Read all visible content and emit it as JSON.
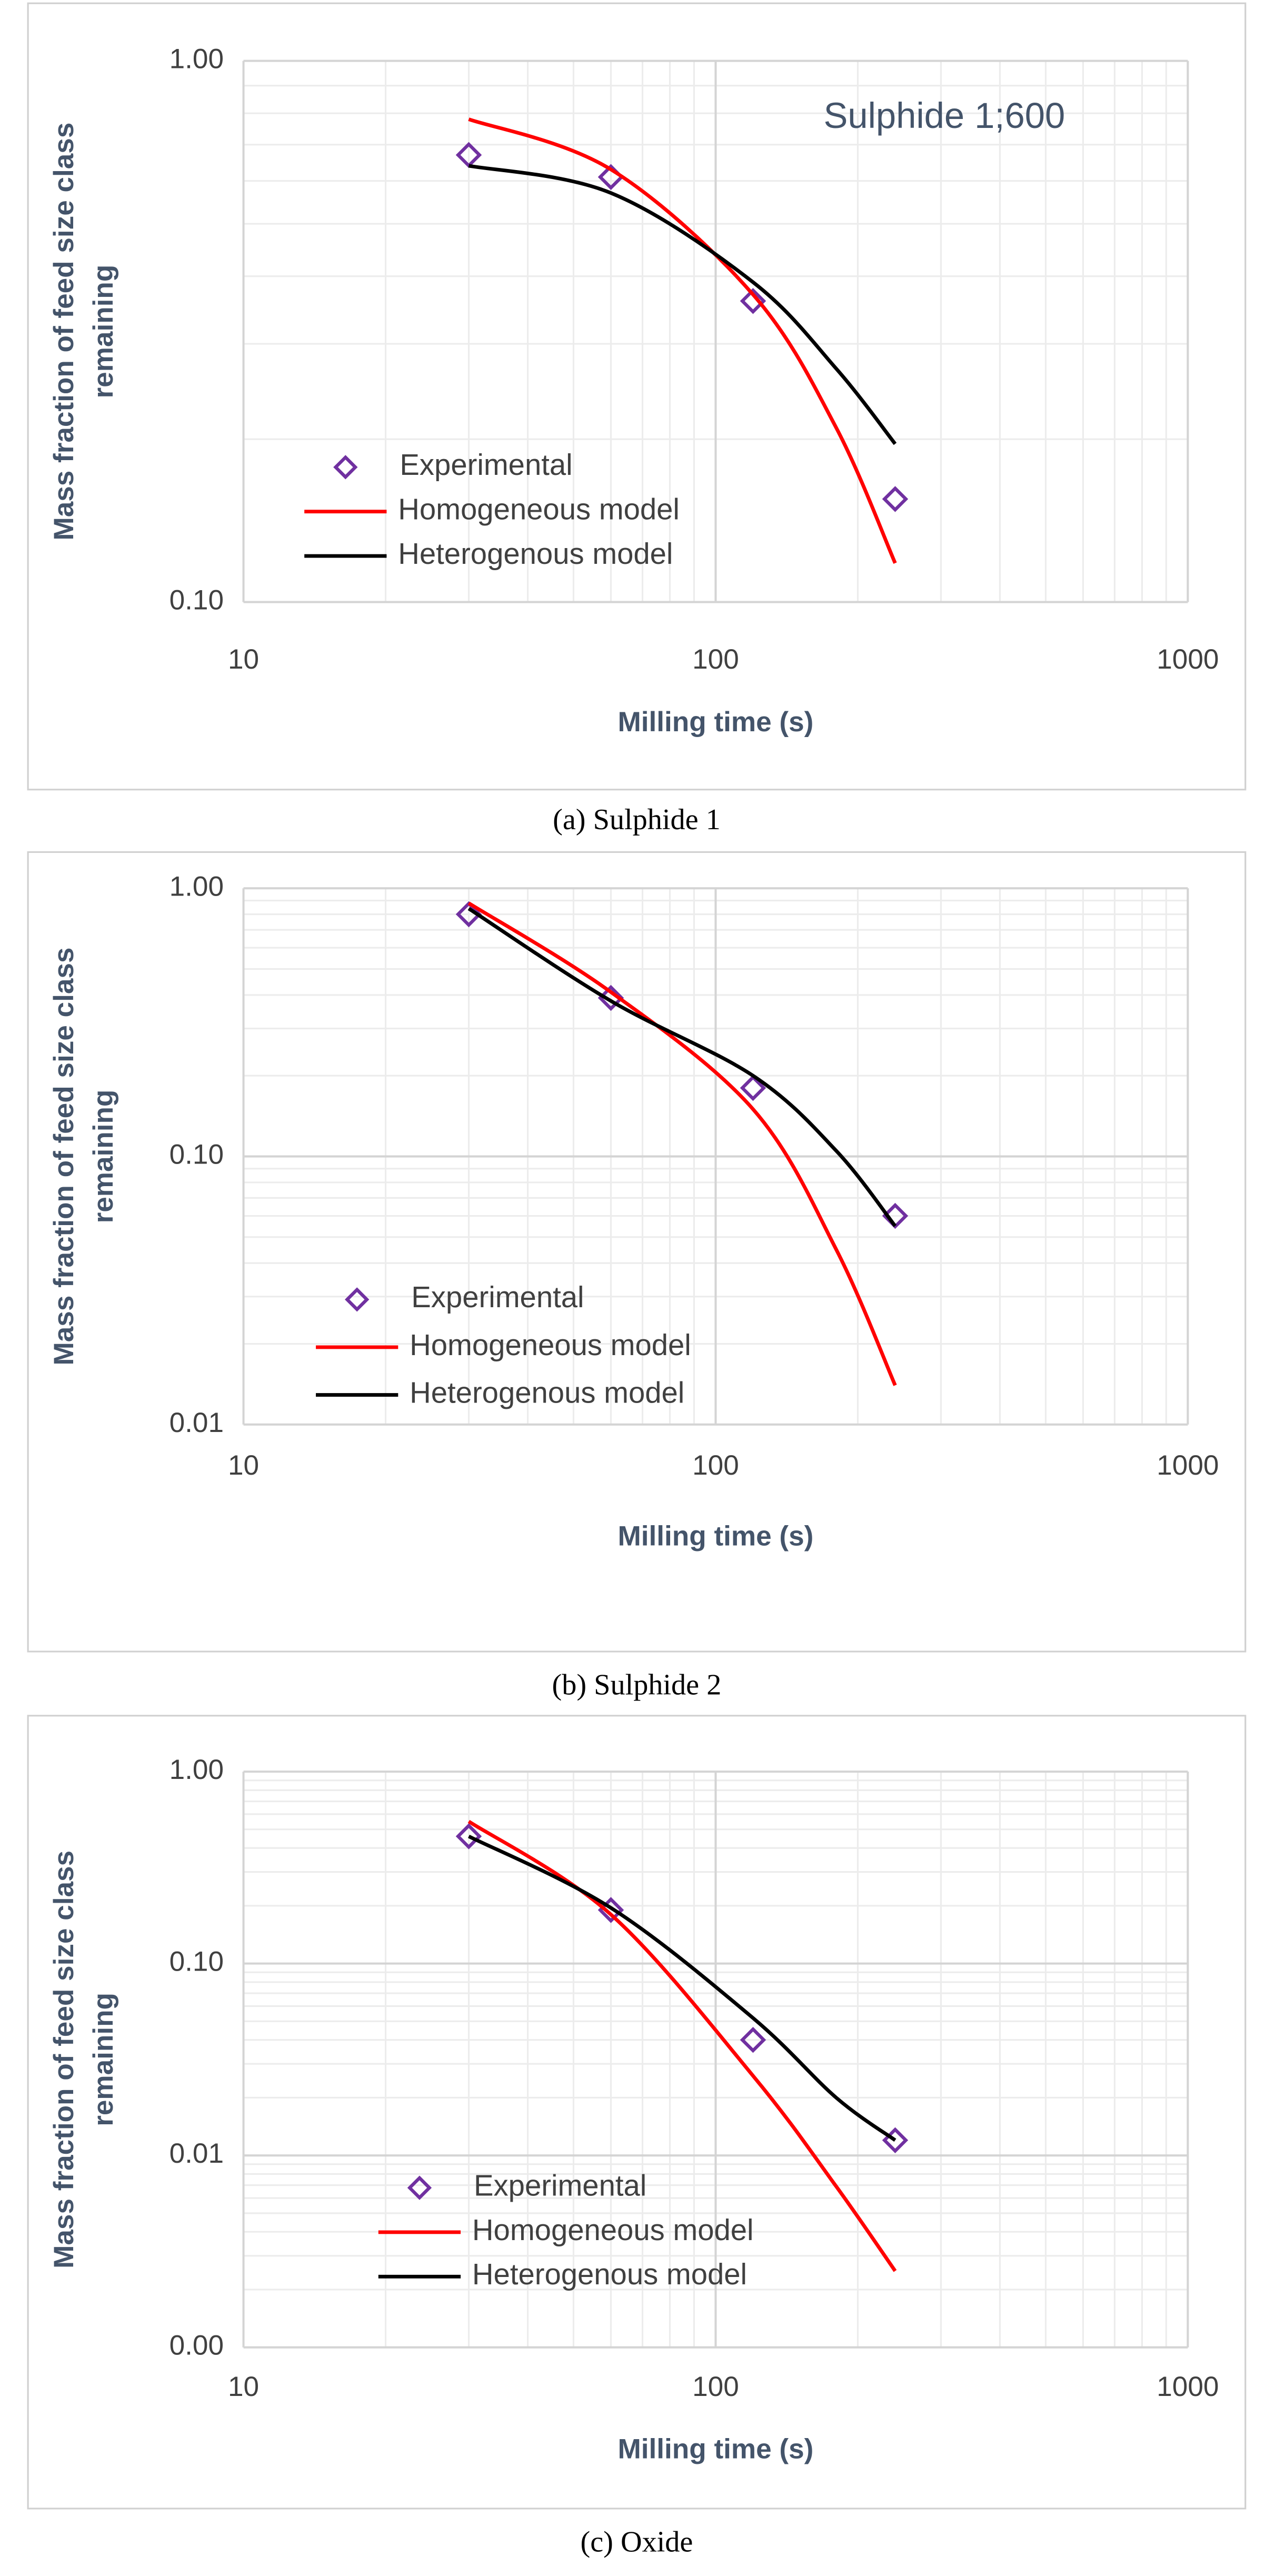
{
  "chart_data": [
    {
      "type": "line",
      "caption": "(a) Sulphide 1",
      "annotation": "Sulphide 1;600",
      "xlabel": "Milling time (s)",
      "ylabel": [
        "Mass fraction of feed size class",
        "remaining"
      ],
      "xlog": true,
      "ylog": true,
      "grid": true,
      "minor_grid": true,
      "xlim": [
        10,
        1000
      ],
      "xticks": [
        10,
        100,
        1000
      ],
      "ylim": [
        0.1,
        1
      ],
      "yticks": [
        {
          "value": 0.1,
          "label": "0.10"
        },
        {
          "value": 1,
          "label": "1.00"
        }
      ],
      "series": [
        {
          "name": "Experimental",
          "color": "#7030a0",
          "marker": "diamond",
          "x": [
            30,
            60,
            120,
            240
          ],
          "values": [
            0.67,
            0.61,
            0.36,
            0.155
          ]
        },
        {
          "name": "Homogeneous model",
          "color": "#ff0000",
          "x": [
            30,
            60,
            120,
            180,
            240
          ],
          "values": [
            0.78,
            0.63,
            0.37,
            0.21,
            0.118
          ]
        },
        {
          "name": "Heterogenous model",
          "color": "#000000",
          "x": [
            30,
            60,
            120,
            180,
            240
          ],
          "values": [
            0.64,
            0.57,
            0.39,
            0.27,
            0.196
          ]
        }
      ]
    },
    {
      "type": "line",
      "caption": "(b) Sulphide 2",
      "xlabel": "Milling time (s)",
      "ylabel": [
        "Mass fraction of feed size class",
        "remaining"
      ],
      "xlog": true,
      "ylog": true,
      "grid": true,
      "minor_grid": true,
      "xlim": [
        10,
        1000
      ],
      "xticks": [
        10,
        100,
        1000
      ],
      "ylim": [
        0.01,
        1
      ],
      "yticks": [
        0.01,
        {
          "value": 0.1,
          "label": "0.10"
        },
        {
          "value": 1,
          "label": "1.00"
        }
      ],
      "series": [
        {
          "name": "Experimental",
          "color": "#7030a0",
          "marker": "diamond",
          "x": [
            30,
            60,
            120,
            240
          ],
          "values": [
            0.8,
            0.39,
            0.18,
            0.06
          ]
        },
        {
          "name": "Homogeneous model",
          "color": "#ff0000",
          "x": [
            30,
            60,
            120,
            180,
            240
          ],
          "values": [
            0.88,
            0.41,
            0.15,
            0.045,
            0.014
          ]
        },
        {
          "name": "Heterogenous model",
          "color": "#000000",
          "x": [
            30,
            60,
            120,
            180,
            240
          ],
          "values": [
            0.84,
            0.38,
            0.2,
            0.105,
            0.055
          ]
        }
      ]
    },
    {
      "type": "line",
      "caption": "(c) Oxide",
      "xlabel": "Milling time (s)",
      "ylabel": [
        "Mass fraction of feed size class",
        "remaining"
      ],
      "xlog": true,
      "ylog": true,
      "grid": true,
      "minor_grid": true,
      "xlim": [
        10,
        1000
      ],
      "xticks": [
        10,
        100,
        1000
      ],
      "ylim": [
        0.001,
        1
      ],
      "yticks": [
        {
          "value": 0.001,
          "label": "0.00"
        },
        0.01,
        {
          "value": 0.1,
          "label": "0.10"
        },
        {
          "value": 1,
          "label": "1.00"
        }
      ],
      "series": [
        {
          "name": "Experimental",
          "color": "#7030a0",
          "marker": "diamond",
          "x": [
            30,
            60,
            120,
            240
          ],
          "values": [
            0.46,
            0.19,
            0.04,
            0.012
          ]
        },
        {
          "name": "Homogeneous model",
          "color": "#ff0000",
          "x": [
            30,
            60,
            120,
            180,
            240
          ],
          "values": [
            0.55,
            0.18,
            0.026,
            0.0069,
            0.0025
          ]
        },
        {
          "name": "Heterogenous model",
          "color": "#000000",
          "x": [
            30,
            60,
            120,
            180,
            240
          ],
          "values": [
            0.46,
            0.195,
            0.052,
            0.02,
            0.012
          ]
        }
      ]
    }
  ]
}
